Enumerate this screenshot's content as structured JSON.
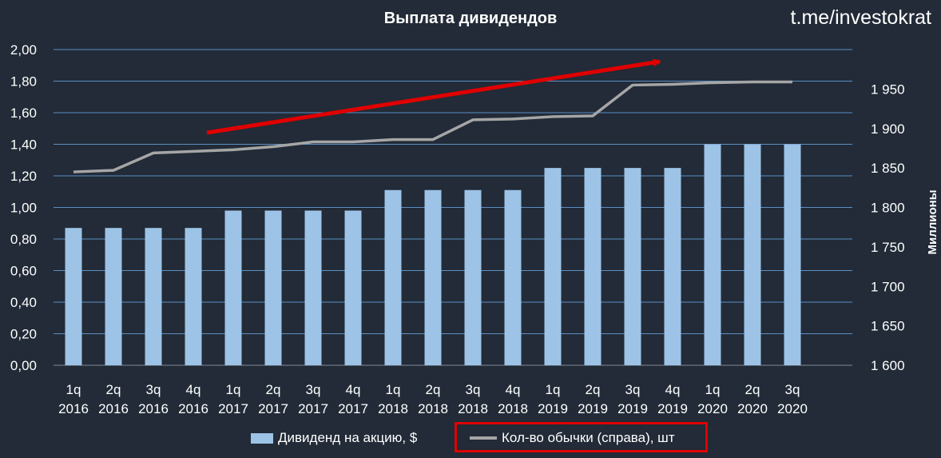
{
  "watermark": "t.me/investokrat",
  "chart_data": {
    "type": "bar+line",
    "title": "Выплата дивидендов",
    "categories": [
      [
        "1q",
        "2016"
      ],
      [
        "2q",
        "2016"
      ],
      [
        "3q",
        "2016"
      ],
      [
        "4q",
        "2016"
      ],
      [
        "1q",
        "2017"
      ],
      [
        "2q",
        "2017"
      ],
      [
        "3q",
        "2017"
      ],
      [
        "4q",
        "2017"
      ],
      [
        "1q",
        "2018"
      ],
      [
        "2q",
        "2018"
      ],
      [
        "3q",
        "2018"
      ],
      [
        "4q",
        "2018"
      ],
      [
        "1q",
        "2019"
      ],
      [
        "2q",
        "2019"
      ],
      [
        "3q",
        "2019"
      ],
      [
        "4q",
        "2019"
      ],
      [
        "1q",
        "2020"
      ],
      [
        "2q",
        "2020"
      ],
      [
        "3q",
        "2020"
      ]
    ],
    "series": [
      {
        "name": "Дивиденд на акцию, $",
        "type": "bar",
        "axis": "left",
        "color": "#9dc3e6",
        "values": [
          0.87,
          0.87,
          0.87,
          0.87,
          0.98,
          0.98,
          0.98,
          0.98,
          1.11,
          1.11,
          1.11,
          1.11,
          1.25,
          1.25,
          1.25,
          1.25,
          1.4,
          1.4,
          1.4
        ]
      },
      {
        "name": "Кол-во обычки (справа), шт",
        "type": "line",
        "axis": "right",
        "color": "#a6a6a6",
        "values": [
          1845,
          1847,
          1869,
          1871,
          1873,
          1877,
          1883,
          1883,
          1886,
          1886,
          1911,
          1912,
          1915,
          1916,
          1955,
          1956,
          1958,
          1959,
          1959
        ]
      }
    ],
    "left_axis": {
      "min": 0,
      "max": 2,
      "step": 0.2,
      "tick_labels": [
        "0,00",
        "0,20",
        "0,40",
        "0,60",
        "0,80",
        "1,00",
        "1,20",
        "1,40",
        "1,60",
        "1,80",
        "2,00"
      ]
    },
    "right_axis": {
      "min": 1600,
      "max": 2000,
      "step": 50,
      "label": "Миллионы",
      "tick_labels": [
        "1 600",
        "1 650",
        "1 700",
        "1 750",
        "1 800",
        "1 850",
        "1 900",
        "1 950"
      ]
    },
    "grid": true,
    "legend_position": "bottom",
    "annotation": "red trend arrow"
  }
}
